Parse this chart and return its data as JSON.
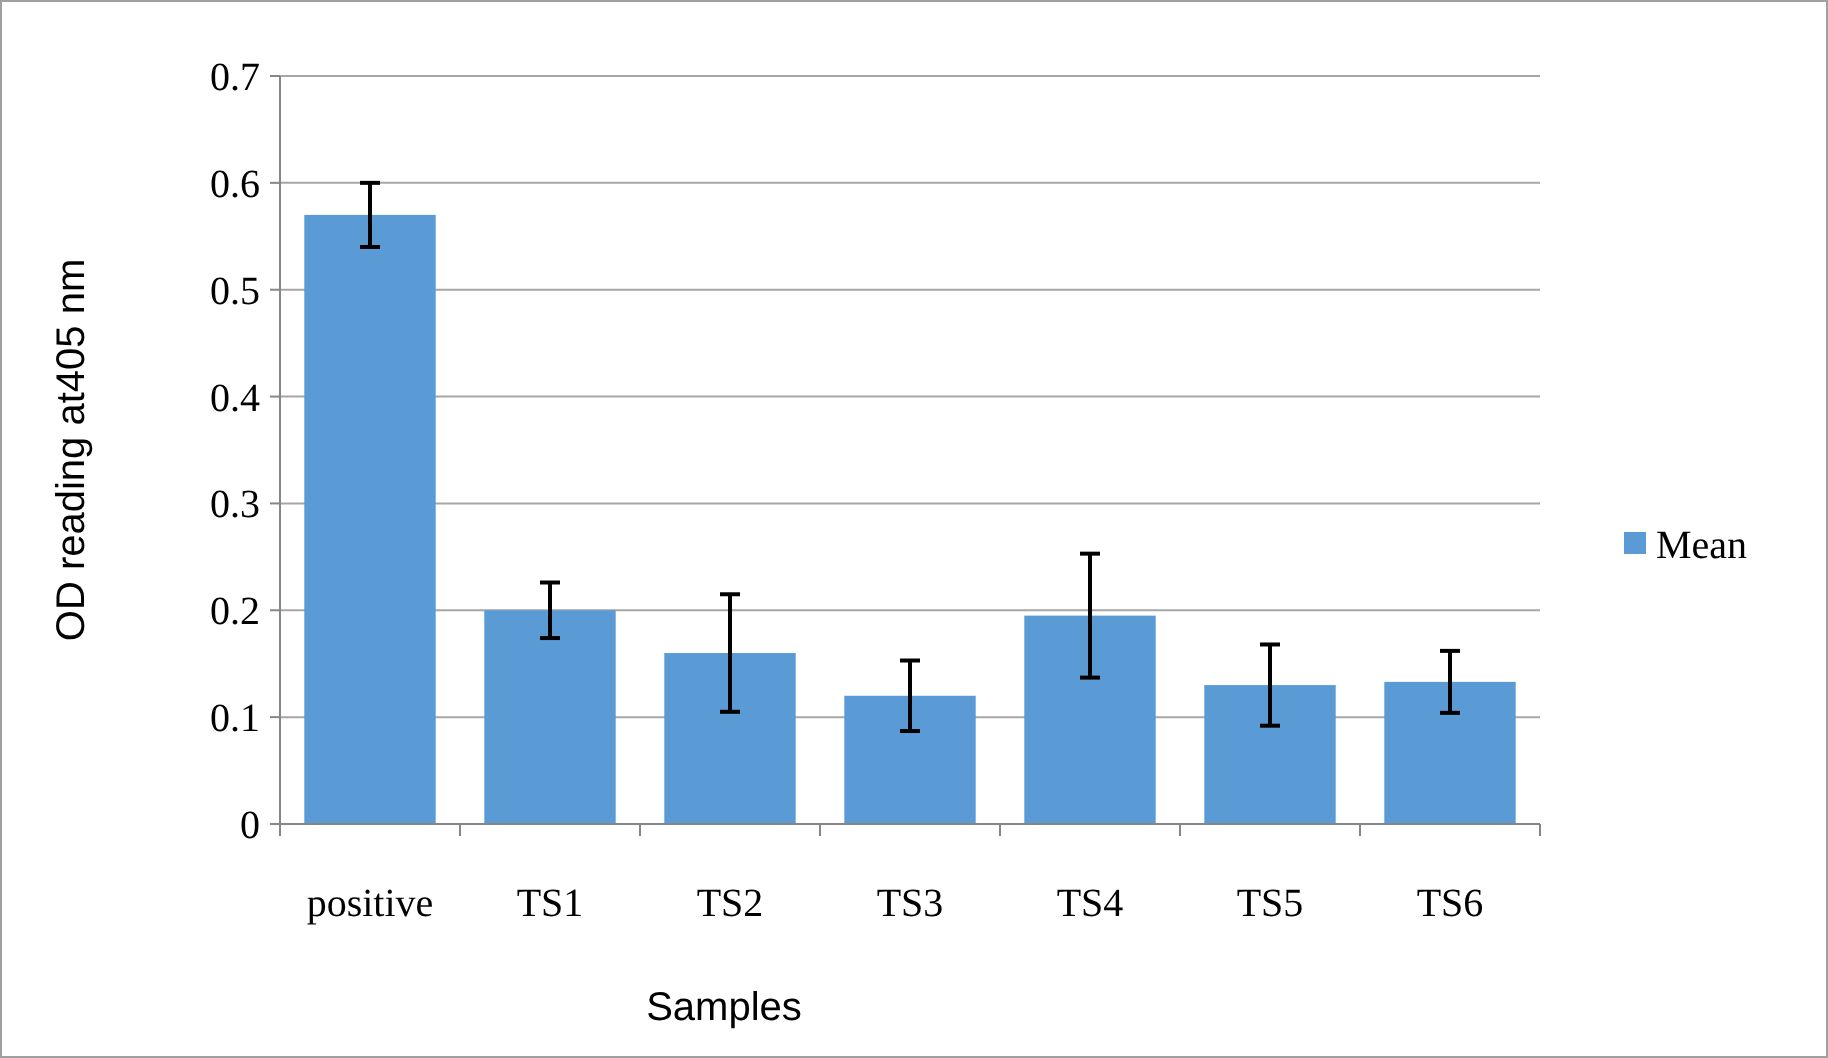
{
  "chart_data": {
    "type": "bar",
    "xlabel": "Samples",
    "ylabel": "OD reading at405 nm",
    "categories": [
      "positive",
      "TS1",
      "TS2",
      "TS3",
      "TS4",
      "TS5",
      "TS6"
    ],
    "series": [
      {
        "name": "Mean",
        "color": "#5b9bd5",
        "values": [
          0.57,
          0.2,
          0.16,
          0.12,
          0.195,
          0.13,
          0.133
        ],
        "errors": [
          0.03,
          0.026,
          0.055,
          0.033,
          0.058,
          0.038,
          0.029
        ]
      }
    ],
    "ylim": [
      0,
      0.7
    ],
    "yticks": [
      {
        "value": 0,
        "label": "0"
      },
      {
        "value": 0.1,
        "label": "0.1"
      },
      {
        "value": 0.2,
        "label": "0.2"
      },
      {
        "value": 0.3,
        "label": "0.3"
      },
      {
        "value": 0.4,
        "label": "0.4"
      },
      {
        "value": 0.5,
        "label": "0.5"
      },
      {
        "value": 0.6,
        "label": "0.6"
      },
      {
        "value": 0.7,
        "label": "0.7"
      }
    ],
    "grid": "y",
    "legend": "right"
  }
}
